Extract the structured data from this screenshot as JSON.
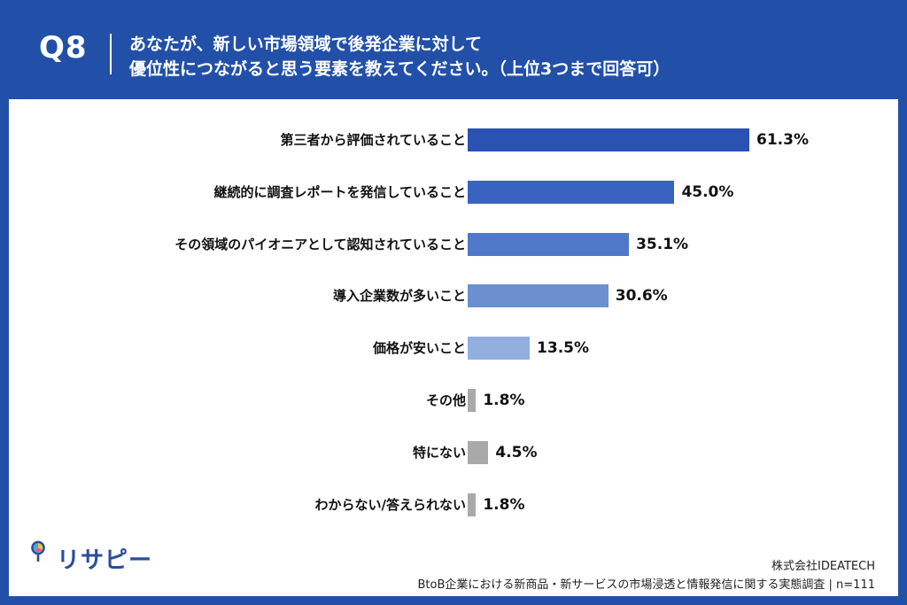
{
  "header": {
    "question_number": "Q8",
    "question_line1": "あなたが、新しい市場領域で後発企業に対して",
    "question_line2": "優位性につながると思う要素を教えてください。（上位3つまで回答可）"
  },
  "chart_data": {
    "type": "bar",
    "orientation": "horizontal",
    "categories": [
      "第三者から評価されていること",
      "継続的に調査レポートを発信していること",
      "その領域のパイオニアとして認知されていること",
      "導入企業数が多いこと",
      "価格が安いこと",
      "その他",
      "特にない",
      "わからない/答えられない"
    ],
    "values": [
      61.3,
      45.0,
      35.1,
      30.6,
      13.5,
      1.8,
      4.5,
      1.8
    ],
    "value_labels": [
      "61.3%",
      "45.0%",
      "35.1%",
      "30.6%",
      "13.5%",
      "1.8%",
      "4.5%",
      "1.8%"
    ],
    "unit": "%",
    "bar_colors": [
      "#2a52b2",
      "#3a62c0",
      "#5078c8",
      "#6c8fd0",
      "#93afe0",
      "#a9a9a9",
      "#a9a9a9",
      "#a9a9a9"
    ],
    "grid": false,
    "legend": "none"
  },
  "branding": {
    "logo_text": "リサピー"
  },
  "footer": {
    "company": "株式会社IDEATECH",
    "survey": "BtoB企業における新商品・新サービスの市場浸透と情報発信に関する実態調査 | n=111"
  },
  "colors": {
    "background": "#2250a8",
    "panel": "#ffffff",
    "logo_accent": "#2a4d9c"
  }
}
